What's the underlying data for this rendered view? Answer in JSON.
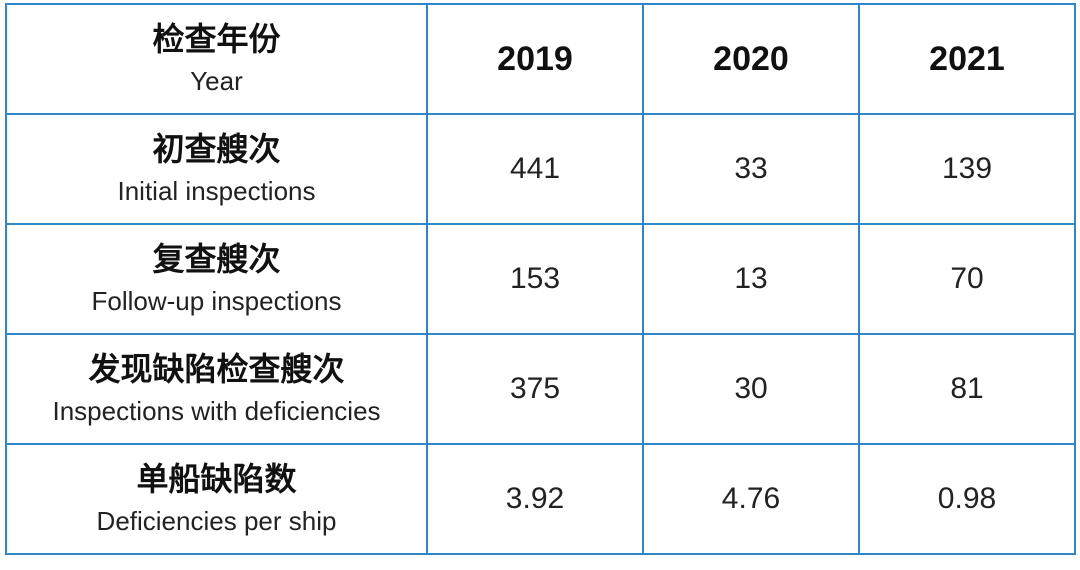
{
  "header": {
    "label_zh": "检查年份",
    "label_en": "Year",
    "years": [
      "2019",
      "2020",
      "2021"
    ]
  },
  "rows": [
    {
      "label_zh": "初查艘次",
      "label_en": "Initial inspections",
      "values": [
        "441",
        "33",
        "139"
      ]
    },
    {
      "label_zh": "复查艘次",
      "label_en": "Follow-up inspections",
      "values": [
        "153",
        "13",
        "70"
      ]
    },
    {
      "label_zh": "发现缺陷检查艘次",
      "label_en": "Inspections with deficiencies",
      "values": [
        "375",
        "30",
        "81"
      ]
    },
    {
      "label_zh": "单船缺陷数",
      "label_en": "Deficiencies per ship",
      "values": [
        "3.92",
        "4.76",
        "0.98"
      ]
    }
  ],
  "chart_data": {
    "type": "table",
    "columns": [
      "2019",
      "2020",
      "2021"
    ],
    "rows": [
      {
        "name": "Initial inspections",
        "values": [
          441,
          33,
          139
        ]
      },
      {
        "name": "Follow-up inspections",
        "values": [
          153,
          13,
          70
        ]
      },
      {
        "name": "Inspections with deficiencies",
        "values": [
          375,
          30,
          81
        ]
      },
      {
        "name": "Deficiencies per ship",
        "values": [
          3.92,
          4.76,
          0.98
        ]
      }
    ]
  },
  "colors": {
    "border": "#2f86c9"
  }
}
